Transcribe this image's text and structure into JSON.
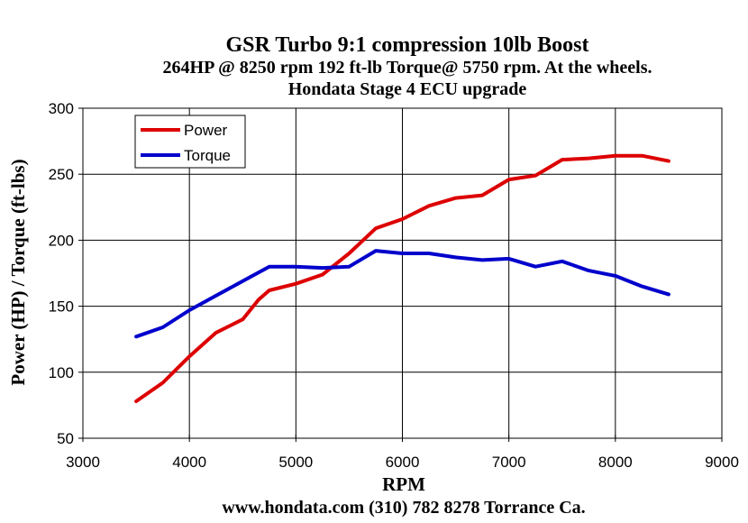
{
  "chart_data": {
    "type": "line",
    "title": "GSR Turbo 9:1 compression 10lb Boost",
    "subtitle_lines": [
      "264HP @ 8250 rpm 192 ft-lb Torque@ 5750 rpm. At the wheels.",
      "Hondata Stage 4 ECU upgrade"
    ],
    "xlabel": "RPM",
    "ylabel": "Power (HP) / Torque (ft-lbs)",
    "footer": "www.hondata.com  (310) 782 8278 Torrance Ca.",
    "xlim": [
      3000,
      9000
    ],
    "ylim": [
      50,
      300
    ],
    "x_ticks": [
      3000,
      4000,
      5000,
      6000,
      7000,
      8000,
      9000
    ],
    "y_ticks": [
      50,
      100,
      150,
      200,
      250,
      300
    ],
    "grid": true,
    "legend_placement": "top-left",
    "series": [
      {
        "name": "Power",
        "color": "#dd0000",
        "x": [
          3500,
          3750,
          4000,
          4250,
          4500,
          4650,
          4750,
          5000,
          5250,
          5500,
          5750,
          6000,
          6250,
          6500,
          6750,
          7000,
          7250,
          7500,
          7750,
          8000,
          8250,
          8500
        ],
        "y": [
          78,
          92,
          112,
          130,
          140,
          155,
          162,
          167,
          174,
          190,
          209,
          216,
          226,
          232,
          234,
          246,
          249,
          261,
          262,
          264,
          264,
          260
        ]
      },
      {
        "name": "Torque",
        "color": "#0000cc",
        "x": [
          3500,
          3750,
          4000,
          4250,
          4500,
          4750,
          5000,
          5250,
          5500,
          5750,
          6000,
          6250,
          6500,
          6750,
          7000,
          7250,
          7500,
          7750,
          8000,
          8250,
          8500
        ],
        "y": [
          127,
          134,
          147,
          158,
          169,
          180,
          180,
          179,
          180,
          192,
          190,
          190,
          187,
          185,
          186,
          180,
          184,
          177,
          173,
          165,
          159
        ]
      }
    ]
  }
}
